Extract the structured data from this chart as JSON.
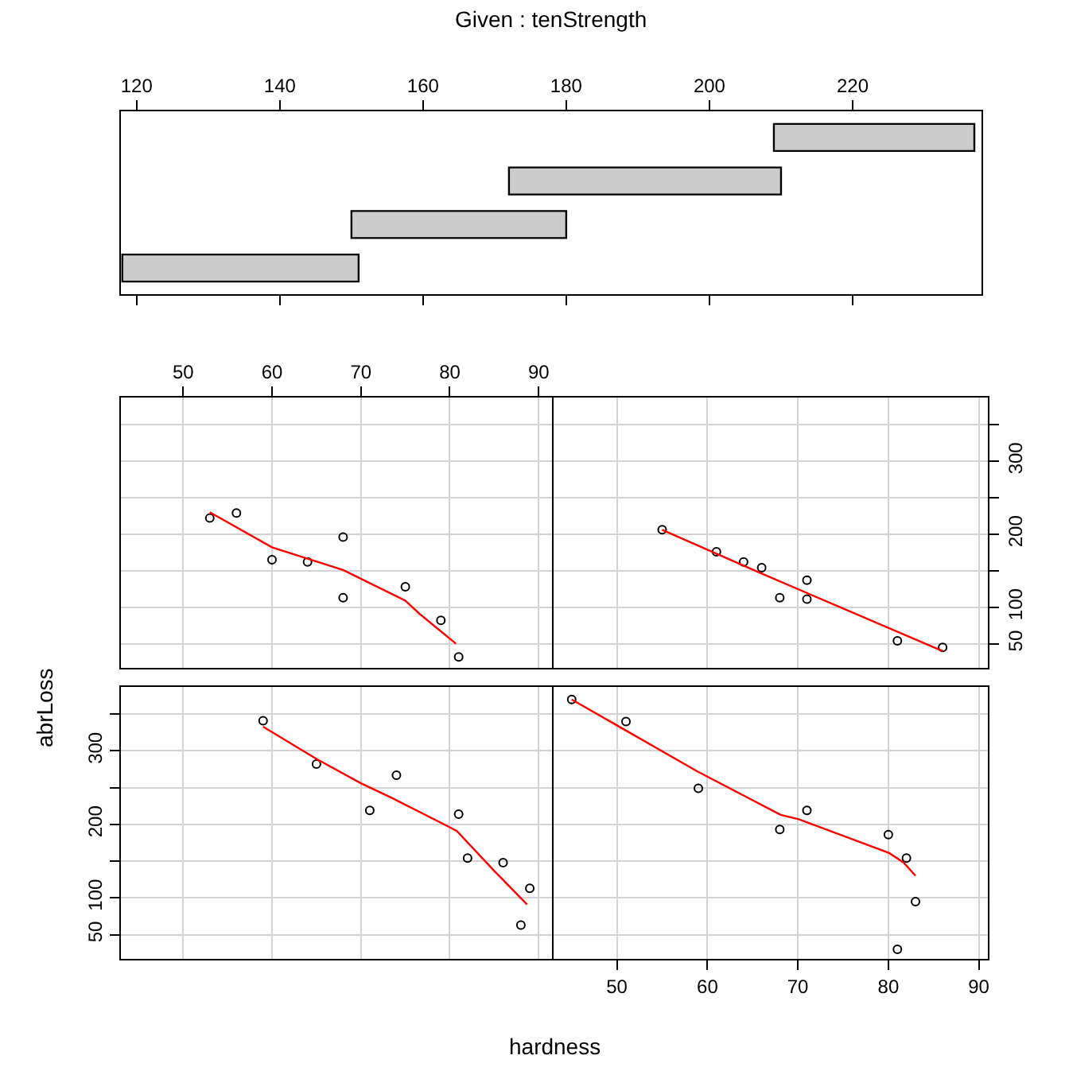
{
  "chart_data": [
    {
      "type": "bar",
      "title": "Given : tenStrength",
      "orientation": "horizontal",
      "categories": [
        null,
        null,
        null,
        null
      ],
      "base": [
        209,
        172,
        150,
        118
      ],
      "values": [
        28,
        38,
        30,
        33
      ],
      "color": "#cccccc",
      "xlim": [
        117.8,
        238
      ],
      "xticks": [
        120,
        140,
        160,
        180,
        200,
        220
      ],
      "tick_labels": "x",
      "grid": false
    },
    {
      "type": "scatter",
      "marker": "circle",
      "grid": true,
      "tick_labels": "x",
      "xlim": [
        43,
        91.5
      ],
      "xticks": [
        50,
        60,
        70,
        80,
        90
      ],
      "ylim": [
        17,
        387
      ],
      "yticks": [
        50,
        100,
        150,
        200,
        250,
        300,
        350
      ],
      "series": [
        {
          "type": "scatter",
          "color": "#000000",
          "x": [
            53,
            56,
            60,
            64,
            68,
            68,
            75,
            79,
            81
          ],
          "values": [
            222,
            229,
            165,
            162,
            196,
            113,
            128,
            82,
            32
          ]
        },
        {
          "type": "line",
          "marker": "none",
          "color": "#ff0000",
          "x": [
            53,
            60,
            68,
            75,
            76.6,
            80.7
          ],
          "values": [
            230,
            182,
            151,
            109,
            91,
            50
          ]
        }
      ]
    },
    {
      "type": "scatter",
      "marker": "circle",
      "grid": true,
      "tick_labels": "y",
      "xlim": [
        43,
        91
      ],
      "xticks": [
        50,
        60,
        70,
        80,
        90
      ],
      "ylim": [
        17,
        387
      ],
      "yticks": [
        {
          "value": 50,
          "label": "50"
        },
        {
          "value": 100,
          "label": "100"
        },
        {
          "value": 150,
          "label": null
        },
        {
          "value": 200,
          "label": "200"
        },
        {
          "value": 250,
          "label": null
        },
        {
          "value": 300,
          "label": "300"
        },
        {
          "value": 350,
          "label": null
        }
      ],
      "series": [
        {
          "type": "scatter",
          "color": "#000000",
          "x": [
            55,
            61,
            64,
            66,
            68,
            71,
            71,
            81,
            86
          ],
          "values": [
            206,
            176,
            162,
            154,
            113,
            137,
            111,
            54,
            45
          ]
        },
        {
          "type": "line",
          "marker": "none",
          "color": "#ff0000",
          "x": [
            55,
            66,
            86
          ],
          "values": [
            206,
            146,
            40
          ]
        }
      ]
    },
    {
      "type": "scatter",
      "marker": "circle",
      "grid": true,
      "tick_labels": "y",
      "ylabel": "abrLoss",
      "xlim": [
        43,
        91.5
      ],
      "xticks": [
        50,
        60,
        70,
        80,
        90
      ],
      "ylim": [
        17,
        387
      ],
      "yticks": [
        {
          "value": 50,
          "label": "50"
        },
        {
          "value": 100,
          "label": "100"
        },
        {
          "value": 150,
          "label": null
        },
        {
          "value": 200,
          "label": "200"
        },
        {
          "value": 250,
          "label": null
        },
        {
          "value": 300,
          "label": "300"
        },
        {
          "value": 350,
          "label": null
        }
      ],
      "series": [
        {
          "type": "scatter",
          "color": "#000000",
          "x": [
            59,
            65,
            74,
            71,
            81,
            82,
            86,
            89,
            88
          ],
          "values": [
            341,
            282,
            267,
            219,
            214,
            154,
            148,
            113,
            63
          ]
        },
        {
          "type": "line",
          "marker": "none",
          "color": "#ff0000",
          "x": [
            59,
            65,
            70,
            73.5,
            80,
            80.8,
            84.9,
            88.7
          ],
          "values": [
            333,
            289,
            256,
            236,
            196,
            191,
            138,
            91
          ]
        }
      ]
    },
    {
      "type": "scatter",
      "marker": "circle",
      "grid": true,
      "tick_labels": "x",
      "xlabel": "hardness",
      "xlim": [
        43,
        91
      ],
      "xticks": [
        50,
        60,
        70,
        80,
        90
      ],
      "ylim": [
        17,
        387
      ],
      "yticks": [
        50,
        100,
        150,
        200,
        250,
        300,
        350
      ],
      "series": [
        {
          "type": "scatter",
          "color": "#000000",
          "x": [
            45,
            51,
            59,
            68,
            71,
            80,
            82,
            83,
            81
          ],
          "values": [
            370,
            340,
            249,
            193,
            219,
            186,
            154,
            95,
            30
          ]
        },
        {
          "type": "line",
          "marker": "none",
          "color": "#ff0000",
          "x": [
            45,
            58.9,
            68.1,
            70.1,
            80.1,
            81.7,
            83
          ],
          "values": [
            370,
            272,
            213,
            207,
            161,
            148,
            130
          ]
        }
      ]
    }
  ]
}
